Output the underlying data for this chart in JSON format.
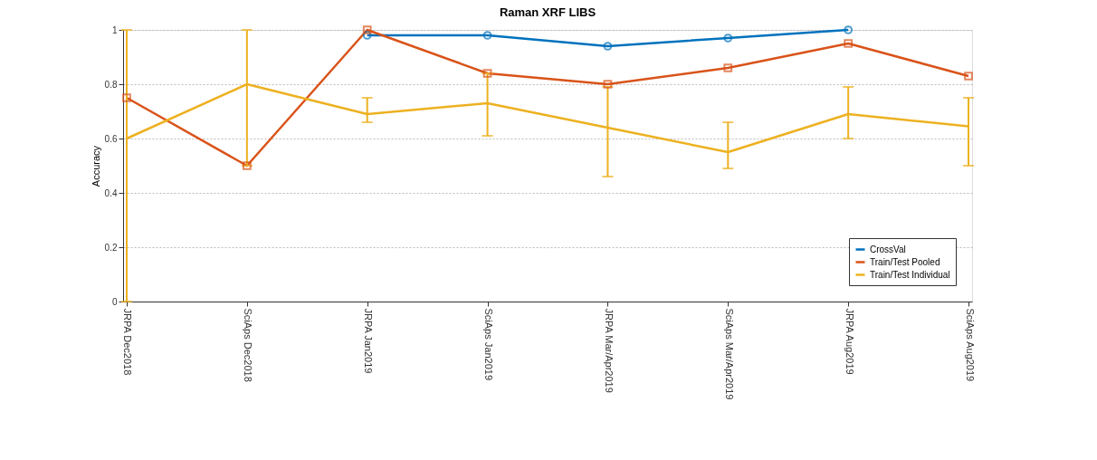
{
  "chart_data": {
    "type": "line",
    "title": "Raman XRF LIBS",
    "ylabel": "Accuracy",
    "categories": [
      "JRPA Dec2018",
      "SciAps Dec2018",
      "JRPA Jan2019",
      "SciAps Jan2019",
      "JRPA Mar/Apr2019",
      "SciAps Mar/Apr2019",
      "JRPA Aug2019",
      "SciAps Aug2019"
    ],
    "series": [
      {
        "name": "CrossVal",
        "color": "#0072bd",
        "marker": "circle",
        "values": [
          null,
          null,
          0.98,
          0.98,
          0.94,
          0.97,
          1.0,
          null
        ]
      },
      {
        "name": "Train/Test Pooled",
        "color": "#d95319",
        "marker": "square",
        "values": [
          0.75,
          0.5,
          1.0,
          0.84,
          0.8,
          0.86,
          0.95,
          0.83
        ]
      },
      {
        "name": "Train/Test Individual",
        "color": "#edb120",
        "marker": "none",
        "values": [
          0.6,
          0.8,
          0.69,
          0.73,
          0.64,
          0.55,
          0.69,
          0.645
        ],
        "errors": [
          [
            0.0,
            1.0
          ],
          [
            0.5,
            1.0
          ],
          [
            0.66,
            0.75
          ],
          [
            0.61,
            0.84
          ],
          [
            0.46,
            0.79
          ],
          [
            0.49,
            0.66
          ],
          [
            0.6,
            0.79
          ],
          [
            0.5,
            0.75
          ]
        ]
      }
    ],
    "ylim": [
      0,
      1
    ],
    "yticks": [
      0,
      0.2,
      0.4,
      0.6,
      0.8,
      1
    ],
    "grid": "y",
    "legend": "bottom right"
  }
}
